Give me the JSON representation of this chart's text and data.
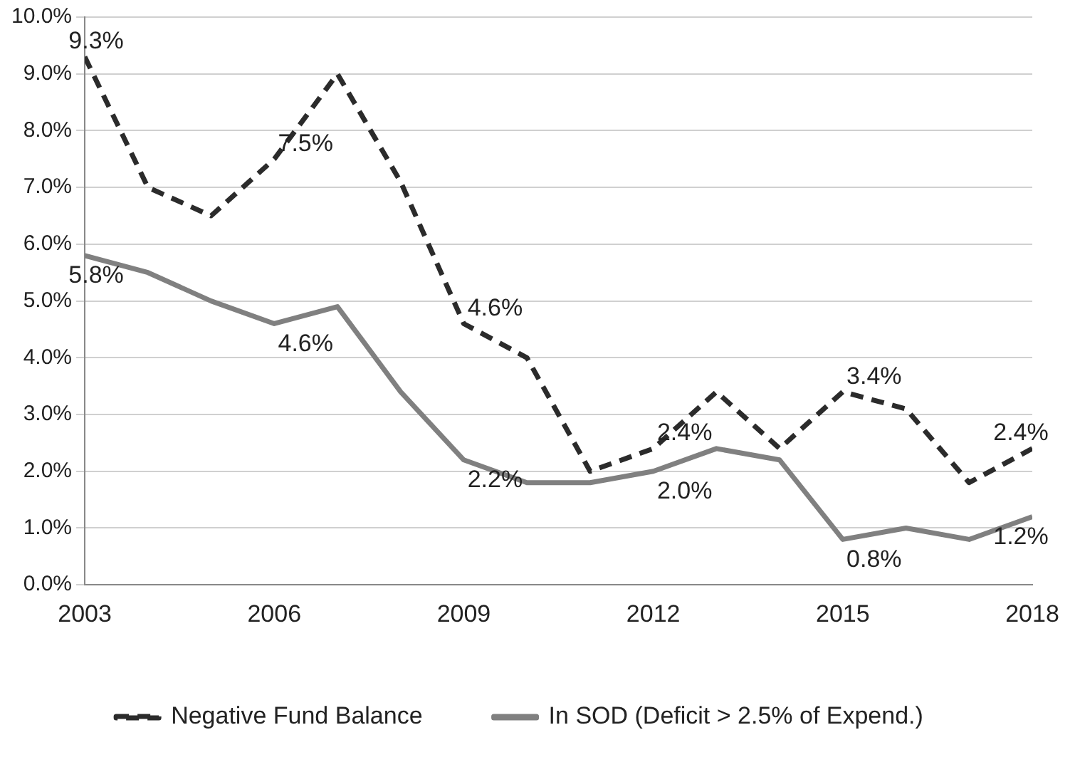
{
  "chart_data": {
    "type": "line",
    "x": [
      2003,
      2004,
      2005,
      2006,
      2007,
      2008,
      2009,
      2010,
      2011,
      2012,
      2013,
      2014,
      2015,
      2016,
      2017,
      2018
    ],
    "xlim": [
      2003,
      2018
    ],
    "xticks": [
      2003,
      2006,
      2009,
      2012,
      2015,
      2018
    ],
    "ylim": [
      0,
      10
    ],
    "yticks": [
      {
        "value": 0,
        "label": "0.0%"
      },
      {
        "value": 1,
        "label": "1.0%"
      },
      {
        "value": 2,
        "label": "2.0%"
      },
      {
        "value": 3,
        "label": "3.0%"
      },
      {
        "value": 4,
        "label": "4.0%"
      },
      {
        "value": 5,
        "label": "5.0%"
      },
      {
        "value": 6,
        "label": "6.0%"
      },
      {
        "value": 7,
        "label": "7.0%"
      },
      {
        "value": 8,
        "label": "8.0%"
      },
      {
        "value": 9,
        "label": "9.0%"
      },
      {
        "value": 10,
        "label": "10.0%"
      }
    ],
    "grid": "y",
    "legend": "bottom",
    "marker": "none",
    "series": [
      {
        "name": "Negative Fund Balance",
        "color": "#2b2b2b",
        "line_style": "dashed",
        "values": [
          9.3,
          7.0,
          6.5,
          7.5,
          9.0,
          7.1,
          4.6,
          4.0,
          2.0,
          2.4,
          3.4,
          2.4,
          3.4,
          3.1,
          1.8,
          2.4
        ]
      },
      {
        "name": "In SOD (Deficit > 2.5% of Expend.)",
        "color": "#808080",
        "line_style": "solid",
        "values": [
          5.8,
          5.5,
          5.0,
          4.6,
          4.9,
          3.4,
          2.2,
          1.8,
          1.8,
          2.0,
          2.4,
          2.2,
          0.8,
          1.0,
          0.8,
          1.2
        ]
      }
    ],
    "annotations": [
      {
        "text": "9.3%",
        "x": 2003,
        "y": 9.3
      },
      {
        "text": "7.5%",
        "x": 2006,
        "y": 7.5
      },
      {
        "text": "4.6%",
        "x": 2009,
        "y": 4.6
      },
      {
        "text": "2.4%",
        "x": 2012,
        "y": 2.4
      },
      {
        "text": "3.4%",
        "x": 2015,
        "y": 3.4
      },
      {
        "text": "2.4%",
        "x": 2018,
        "y": 2.4
      },
      {
        "text": "5.8%",
        "x": 2003,
        "y": 5.8
      },
      {
        "text": "4.6%",
        "x": 2006,
        "y": 4.6
      },
      {
        "text": "2.2%",
        "x": 2009,
        "y": 2.2
      },
      {
        "text": "2.0%",
        "x": 2012,
        "y": 2.0
      },
      {
        "text": "0.8%",
        "x": 2015,
        "y": 0.8
      },
      {
        "text": "1.2%",
        "x": 2018,
        "y": 1.2
      }
    ]
  }
}
